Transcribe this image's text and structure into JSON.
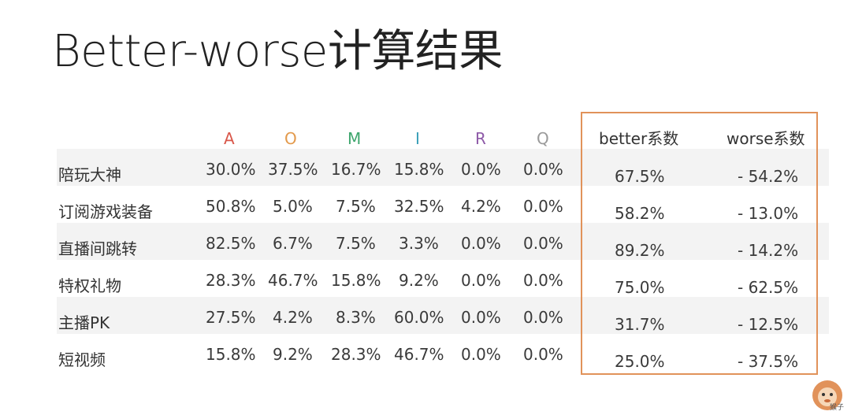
{
  "title": "Better-worse计算结果",
  "table": {
    "columns": [
      {
        "label": "A",
        "color": "#d9574a"
      },
      {
        "label": "O",
        "color": "#e39a4c"
      },
      {
        "label": "M",
        "color": "#3fa66e"
      },
      {
        "label": "I",
        "color": "#3a9fb8"
      },
      {
        "label": "R",
        "color": "#8e5aa8"
      },
      {
        "label": "Q",
        "color": "#9a9a9a"
      }
    ],
    "coef_headers": [
      "better系数",
      "worse系数"
    ],
    "rows": [
      {
        "label": "陪玩大神",
        "values": [
          "30.0%",
          "37.5%",
          "16.7%",
          "15.8%",
          "0.0%",
          "0.0%"
        ],
        "better": "67.5%",
        "worse": "- 54.2%"
      },
      {
        "label": "订阅游戏装备",
        "values": [
          "50.8%",
          "5.0%",
          "7.5%",
          "32.5%",
          "4.2%",
          "0.0%"
        ],
        "better": "58.2%",
        "worse": "- 13.0%"
      },
      {
        "label": "直播间跳转",
        "values": [
          "82.5%",
          "6.7%",
          "7.5%",
          "3.3%",
          "0.0%",
          "0.0%"
        ],
        "better": "89.2%",
        "worse": "- 14.2%"
      },
      {
        "label": "特权礼物",
        "values": [
          "28.3%",
          "46.7%",
          "15.8%",
          "9.2%",
          "0.0%",
          "0.0%"
        ],
        "better": "75.0%",
        "worse": "- 62.5%"
      },
      {
        "label": "主播PK",
        "values": [
          "27.5%",
          "4.2%",
          "8.3%",
          "60.0%",
          "0.0%",
          "0.0%"
        ],
        "better": "31.7%",
        "worse": "- 12.5%"
      },
      {
        "label": "短视频",
        "values": [
          "15.8%",
          "9.2%",
          "28.3%",
          "46.7%",
          "0.0%",
          "0.0%"
        ],
        "better": "25.0%",
        "worse": "- 37.5%"
      }
    ]
  },
  "logo": {
    "icon": "monkey-icon",
    "caption": "猴子",
    "accent": "#e1925a"
  }
}
